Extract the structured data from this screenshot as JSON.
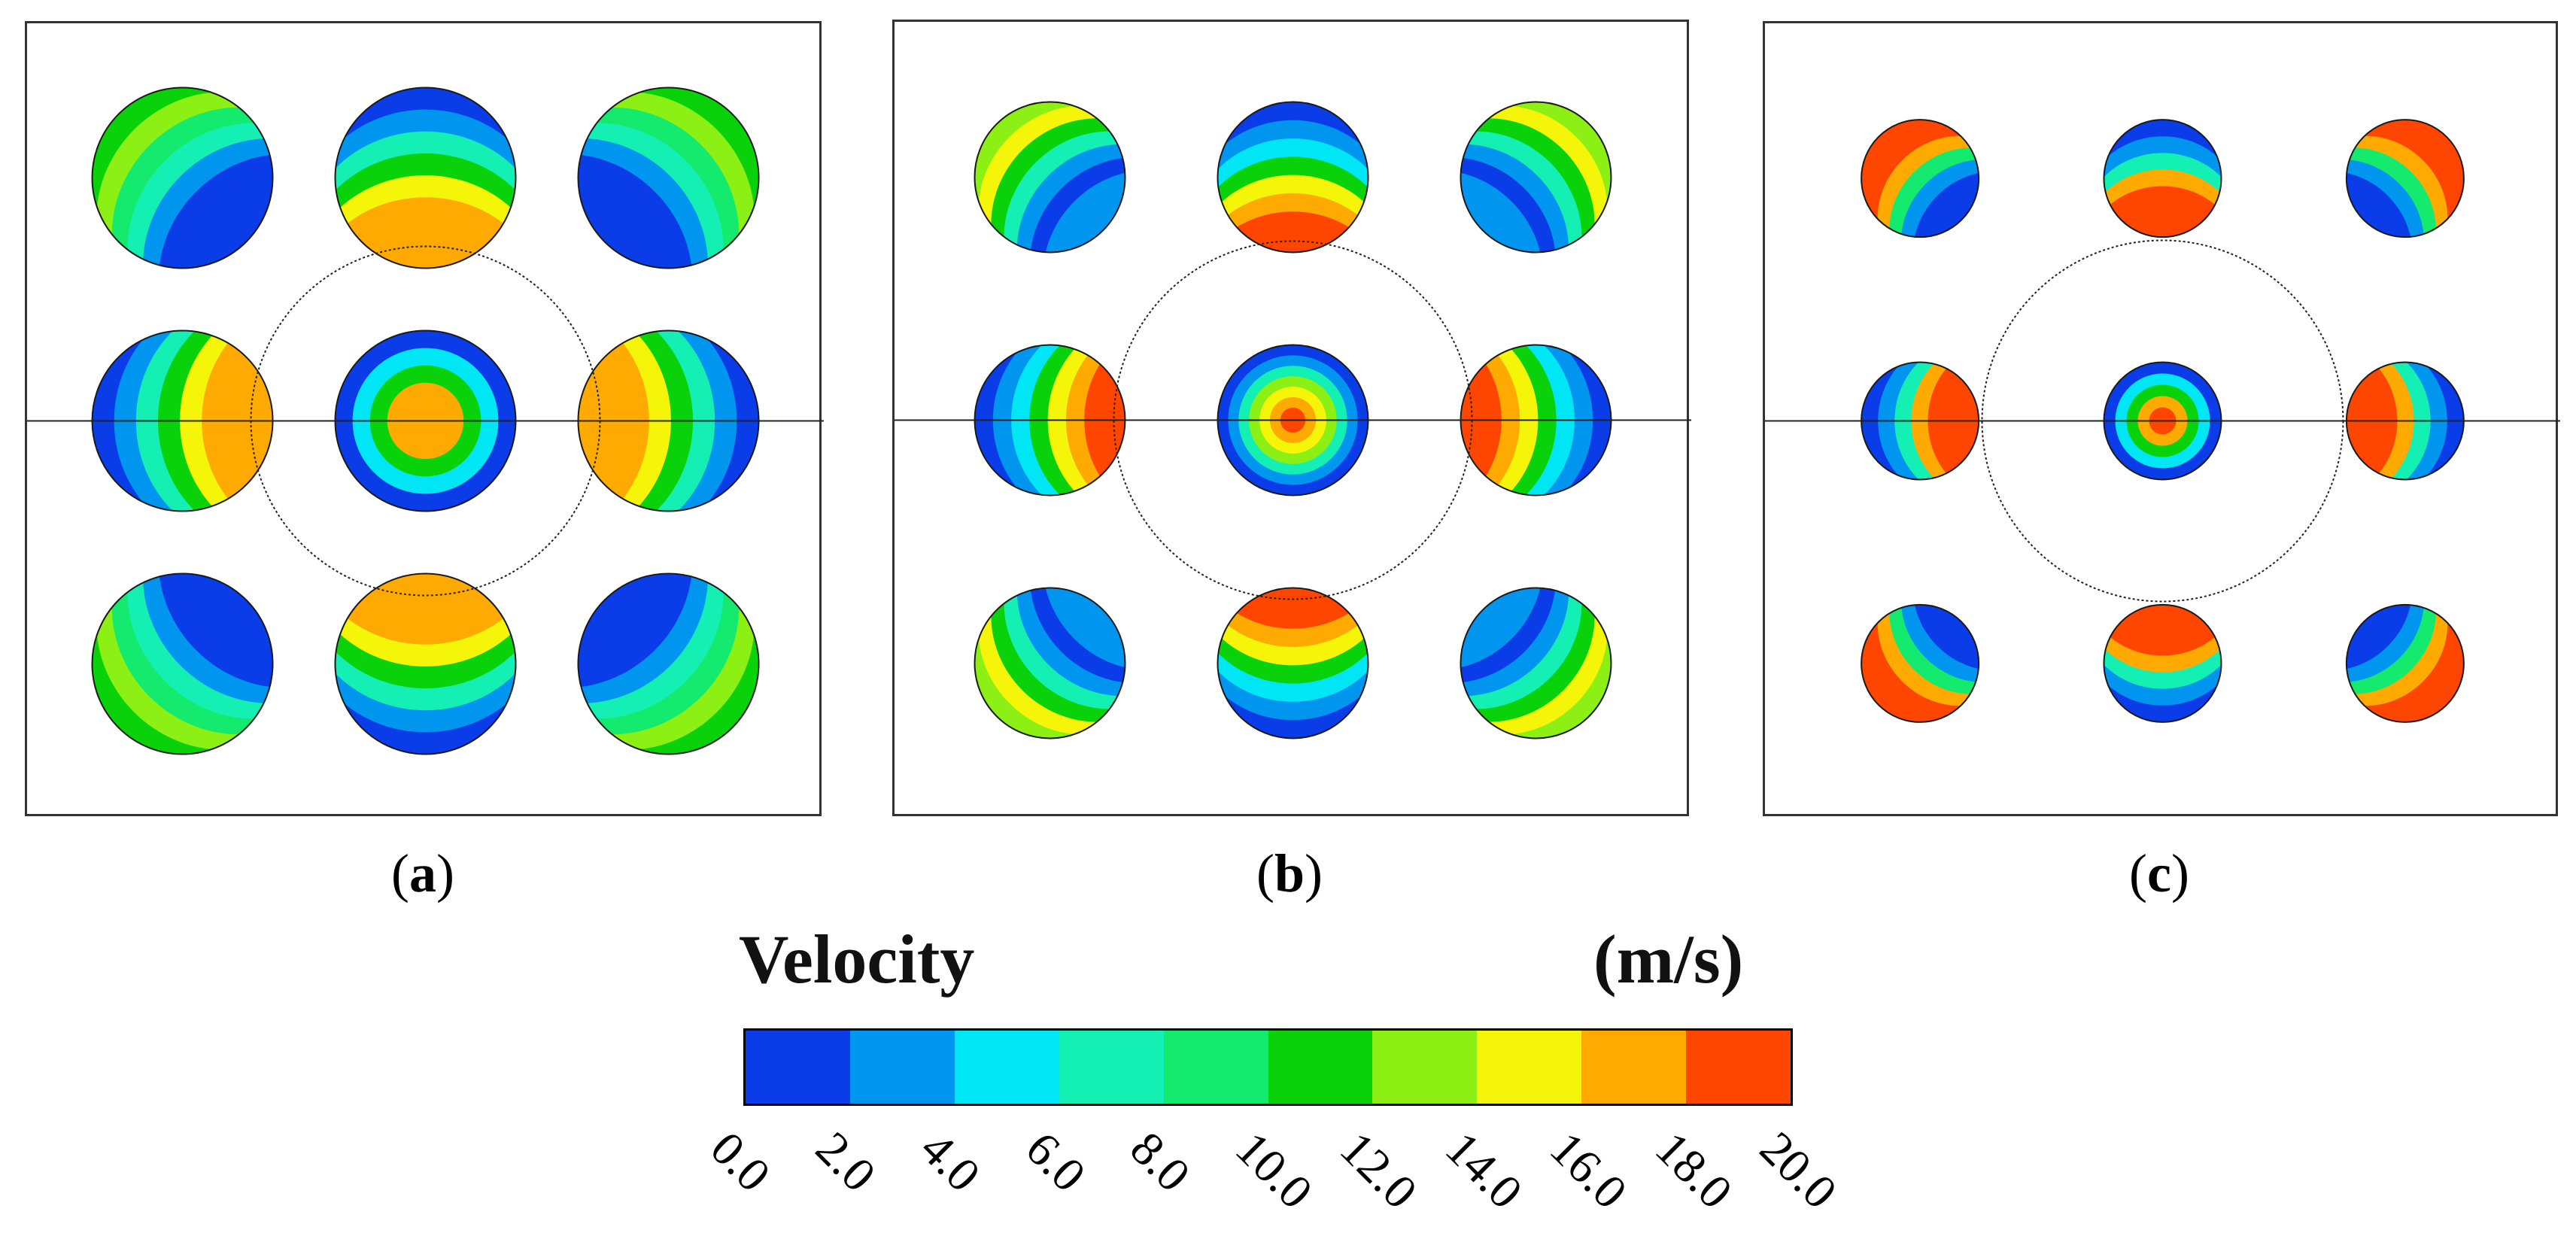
{
  "panels": [
    {
      "id": "a",
      "caption_open": "(",
      "caption_letter": "a",
      "caption_close": ")",
      "pipe_scale": "large"
    },
    {
      "id": "b",
      "caption_open": "(",
      "caption_letter": "b",
      "caption_close": ")",
      "pipe_scale": "medium"
    },
    {
      "id": "c",
      "caption_open": "(",
      "caption_letter": "c",
      "caption_close": ")",
      "pipe_scale": "small"
    }
  ],
  "legend": {
    "title": "Velocity",
    "unit": "(m/s)",
    "colors": [
      "#0a3ce8",
      "#0096f0",
      "#00e6f5",
      "#14f0b4",
      "#14eb6e",
      "#0ad20a",
      "#8cf014",
      "#f5f50a",
      "#ffaa00",
      "#ff4600"
    ],
    "ticks": [
      "0.0",
      "2.0",
      "4.0",
      "6.0",
      "8.0",
      "10.0",
      "12.0",
      "14.0",
      "16.0",
      "18.0",
      "20.0"
    ]
  }
}
